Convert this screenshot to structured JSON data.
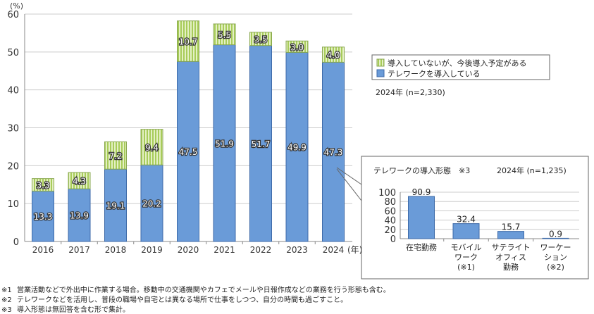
{
  "chart_data": [
    {
      "type": "bar",
      "stacked": true,
      "ylabel": "(%)",
      "xunit": "(年)",
      "categories": [
        "2016",
        "2017",
        "2018",
        "2019",
        "2020",
        "2021",
        "2022",
        "2023",
        "2024"
      ],
      "ylim": [
        0,
        60
      ],
      "yticks": [
        0,
        10,
        20,
        30,
        40,
        50,
        60
      ],
      "grid": true,
      "legend_placement": "right",
      "series": [
        {
          "name": "テレワークを導入している",
          "color": "#6a9bd8",
          "values": [
            13.3,
            13.9,
            19.1,
            20.2,
            47.5,
            51.9,
            51.7,
            49.9,
            47.3
          ]
        },
        {
          "name": "導入していないが、今後導入予定がある",
          "color": "#c5e08a",
          "values": [
            3.3,
            4.3,
            7.2,
            9.4,
            10.7,
            5.5,
            3.5,
            3.0,
            4.0
          ]
        }
      ],
      "annotation": "2024年 (n=2,330)"
    },
    {
      "type": "bar",
      "title": "テレワークの導入形態　※3",
      "subtitle": "2024年 (n=1,235)",
      "categories": [
        [
          "在宅勤務"
        ],
        [
          "モバイル",
          "ワーク",
          "(※1)"
        ],
        [
          "サテライト",
          "オフィス",
          "勤務"
        ],
        [
          "ワーケー",
          "ション",
          "(※2)"
        ]
      ],
      "values": [
        90.9,
        32.4,
        15.7,
        0.9
      ],
      "ylim": [
        0,
        100
      ],
      "yticks": [
        0,
        20,
        40,
        60,
        80,
        100
      ],
      "grid": true,
      "color": "#6a9bd8"
    }
  ],
  "footnotes": [
    {
      "mark": "※1",
      "text": "営業活動などで外出中に作業する場合。移動中の交通機関やカフェでメールや日報作成などの業務を行う形態も含む。"
    },
    {
      "mark": "※2",
      "text": "テレワークなどを活用し、普段の職場や自宅とは異なる場所で仕事をしつつ、自分の時間も過ごすこと。"
    },
    {
      "mark": "※3",
      "text": "導入形態は無回答を含む形で集計。"
    }
  ]
}
